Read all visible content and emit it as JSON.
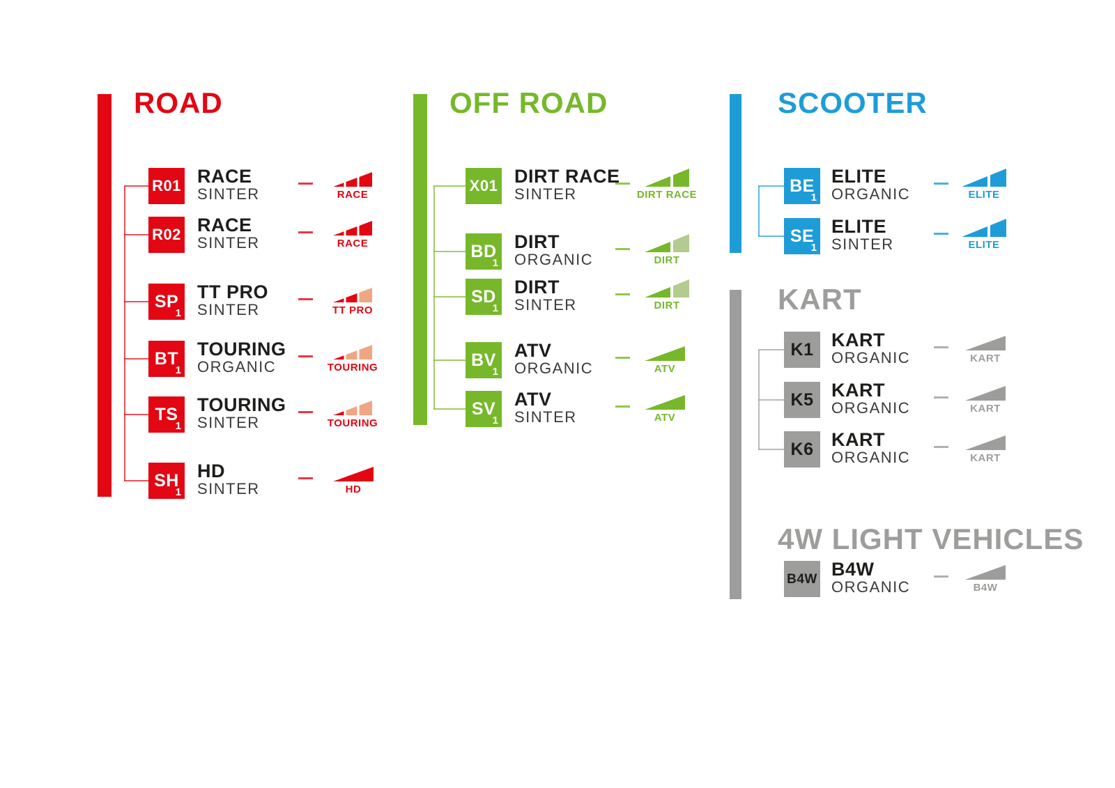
{
  "page": {
    "background": "#ffffff",
    "text_color": "#1d1d1b"
  },
  "sections": [
    {
      "id": "road",
      "title": "ROAD",
      "color": "#e30613",
      "light_color": "#f1a683",
      "code_text_color": "#ffffff",
      "items": [
        {
          "code": "R01",
          "sub": "",
          "product": "RACE",
          "compound": "SINTER",
          "badge": "RACE",
          "slices": [
            "full",
            "full",
            "full"
          ]
        },
        {
          "code": "R02",
          "sub": "",
          "product": "RACE",
          "compound": "SINTER",
          "badge": "RACE",
          "slices": [
            "full",
            "full",
            "full"
          ]
        },
        {
          "code": "SP",
          "sub": "1",
          "product": "TT PRO",
          "compound": "SINTER",
          "badge": "TT PRO",
          "slices": [
            "full",
            "full",
            "light"
          ]
        },
        {
          "code": "BT",
          "sub": "1",
          "product": "TOURING",
          "compound": "ORGANIC",
          "badge": "TOURING",
          "slices": [
            "full",
            "light",
            "light"
          ]
        },
        {
          "code": "TS",
          "sub": "1",
          "product": "TOURING",
          "compound": "SINTER",
          "badge": "TOURING",
          "slices": [
            "full",
            "light",
            "light"
          ]
        },
        {
          "code": "SH",
          "sub": "1",
          "product": "HD",
          "compound": "SINTER",
          "badge": "HD",
          "slices": [
            "full"
          ]
        }
      ]
    },
    {
      "id": "offroad",
      "title": "OFF ROAD",
      "color": "#76b82a",
      "light_color": "#b4ca8e",
      "code_text_color": "#ffffff",
      "items": [
        {
          "code": "X01",
          "sub": "",
          "product": "DIRT RACE",
          "compound": "SINTER",
          "badge": "DIRT RACE",
          "slices": [
            "full",
            "full"
          ]
        },
        {
          "code": "BD",
          "sub": "1",
          "product": "DIRT",
          "compound": "ORGANIC",
          "badge": "DIRT",
          "slices": [
            "full",
            "light"
          ]
        },
        {
          "code": "SD",
          "sub": "1",
          "product": "DIRT",
          "compound": "SINTER",
          "badge": "DIRT",
          "slices": [
            "full",
            "light"
          ]
        },
        {
          "code": "BV",
          "sub": "1",
          "product": "ATV",
          "compound": "ORGANIC",
          "badge": "ATV",
          "slices": [
            "full"
          ]
        },
        {
          "code": "SV",
          "sub": "1",
          "product": "ATV",
          "compound": "SINTER",
          "badge": "ATV",
          "slices": [
            "full"
          ]
        }
      ]
    },
    {
      "id": "scooter",
      "title": "SCOOTER",
      "color": "#1e9cd8",
      "code_text_color": "#ffffff",
      "items": [
        {
          "code": "BE",
          "sub": "1",
          "product": "ELITE",
          "compound": "ORGANIC",
          "badge": "ELITE",
          "slices": [
            "full",
            "full"
          ]
        },
        {
          "code": "SE",
          "sub": "1",
          "product": "ELITE",
          "compound": "SINTER",
          "badge": "ELITE",
          "slices": [
            "full",
            "full"
          ]
        }
      ]
    },
    {
      "id": "kart",
      "title": "KART",
      "color": "#9d9d9c",
      "code_text_color": "#1d1d1b",
      "items": [
        {
          "code": "K1",
          "sub": "",
          "product": "KART",
          "compound": "ORGANIC",
          "badge": "KART",
          "slices": [
            "full"
          ]
        },
        {
          "code": "K5",
          "sub": "",
          "product": "KART",
          "compound": "ORGANIC",
          "badge": "KART",
          "slices": [
            "full"
          ]
        },
        {
          "code": "K6",
          "sub": "",
          "product": "KART",
          "compound": "ORGANIC",
          "badge": "KART",
          "slices": [
            "full"
          ]
        }
      ]
    },
    {
      "id": "lv4w",
      "title": "4W LIGHT VEHICLES",
      "color": "#9d9d9c",
      "code_text_color": "#1d1d1b",
      "items": [
        {
          "code": "B4W",
          "sub": "",
          "product": "B4W",
          "compound": "ORGANIC",
          "badge": "B4W",
          "slices": [
            "full"
          ]
        }
      ]
    }
  ]
}
